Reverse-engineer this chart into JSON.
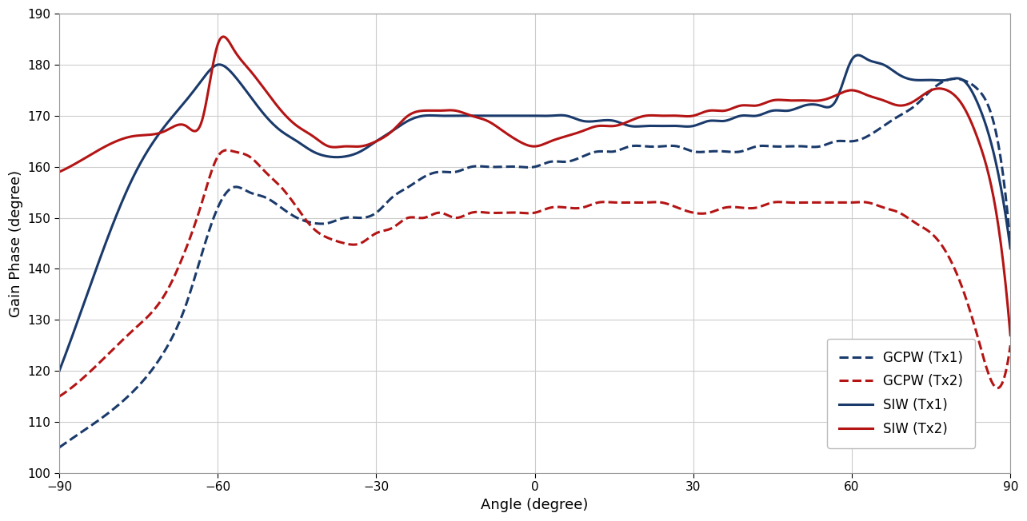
{
  "title": "",
  "xlabel": "Angle (degree)",
  "ylabel": "Gain Phase (degree)",
  "xlim": [
    -90,
    90
  ],
  "ylim": [
    100,
    190
  ],
  "xticks": [
    -90,
    -60,
    -30,
    0,
    30,
    60,
    90
  ],
  "yticks": [
    100,
    110,
    120,
    130,
    140,
    150,
    160,
    170,
    180,
    190
  ],
  "background_color": "#ffffff",
  "grid_color": "#cccccc",
  "GCPW_Tx1_x": [
    -90,
    -83,
    -76,
    -70,
    -66,
    -63,
    -60,
    -57,
    -54,
    -51,
    -48,
    -45,
    -42,
    -39,
    -36,
    -33,
    -30,
    -27,
    -24,
    -21,
    -18,
    -15,
    -12,
    -9,
    -6,
    -3,
    0,
    3,
    6,
    9,
    12,
    15,
    18,
    21,
    24,
    27,
    30,
    33,
    36,
    39,
    42,
    45,
    48,
    51,
    54,
    57,
    60,
    63,
    66,
    69,
    72,
    75,
    78,
    81,
    84,
    87,
    90
  ],
  "GCPW_Tx1_y": [
    105,
    110,
    116,
    124,
    133,
    143,
    152,
    156,
    155,
    154,
    152,
    150,
    149,
    149,
    150,
    150,
    151,
    154,
    156,
    158,
    159,
    159,
    160,
    160,
    160,
    160,
    160,
    161,
    161,
    162,
    163,
    163,
    164,
    164,
    164,
    164,
    163,
    163,
    163,
    163,
    164,
    164,
    164,
    164,
    164,
    165,
    165,
    166,
    168,
    170,
    172,
    175,
    177,
    177,
    175,
    168,
    145
  ],
  "GCPW_Tx2_x": [
    -90,
    -83,
    -76,
    -70,
    -66,
    -63,
    -60,
    -57,
    -54,
    -51,
    -48,
    -45,
    -42,
    -39,
    -36,
    -33,
    -30,
    -27,
    -24,
    -21,
    -18,
    -15,
    -12,
    -9,
    -6,
    -3,
    0,
    3,
    6,
    9,
    12,
    15,
    18,
    21,
    24,
    27,
    30,
    33,
    36,
    39,
    42,
    45,
    48,
    51,
    54,
    57,
    60,
    63,
    66,
    69,
    72,
    75,
    78,
    81,
    84,
    87,
    90
  ],
  "GCPW_Tx2_y": [
    115,
    121,
    128,
    135,
    144,
    153,
    162,
    163,
    162,
    159,
    156,
    152,
    148,
    146,
    145,
    145,
    147,
    148,
    150,
    150,
    151,
    150,
    151,
    151,
    151,
    151,
    151,
    152,
    152,
    152,
    153,
    153,
    153,
    153,
    153,
    152,
    151,
    151,
    152,
    152,
    152,
    153,
    153,
    153,
    153,
    153,
    153,
    153,
    152,
    151,
    149,
    147,
    143,
    136,
    126,
    117,
    125
  ],
  "SIW_Tx1_x": [
    -90,
    -83,
    -76,
    -70,
    -66,
    -63,
    -60,
    -57,
    -54,
    -51,
    -48,
    -45,
    -42,
    -39,
    -36,
    -33,
    -30,
    -27,
    -24,
    -21,
    -18,
    -15,
    -12,
    -9,
    -6,
    -3,
    0,
    3,
    6,
    9,
    12,
    15,
    18,
    21,
    24,
    27,
    30,
    33,
    36,
    39,
    42,
    45,
    48,
    51,
    54,
    57,
    60,
    63,
    66,
    69,
    72,
    75,
    78,
    81,
    84,
    87,
    90
  ],
  "SIW_Tx1_y": [
    120,
    140,
    158,
    168,
    173,
    177,
    180,
    178,
    174,
    170,
    167,
    165,
    163,
    162,
    162,
    163,
    165,
    167,
    169,
    170,
    170,
    170,
    170,
    170,
    170,
    170,
    170,
    170,
    170,
    169,
    169,
    169,
    168,
    168,
    168,
    168,
    168,
    169,
    169,
    170,
    170,
    171,
    171,
    172,
    172,
    173,
    181,
    181,
    180,
    178,
    177,
    177,
    177,
    177,
    172,
    162,
    144
  ],
  "SIW_Tx2_x": [
    -90,
    -83,
    -76,
    -70,
    -66,
    -63,
    -60,
    -57,
    -54,
    -51,
    -48,
    -45,
    -42,
    -39,
    -36,
    -33,
    -30,
    -27,
    -24,
    -21,
    -18,
    -15,
    -12,
    -9,
    -6,
    -3,
    0,
    3,
    6,
    9,
    12,
    15,
    18,
    21,
    24,
    27,
    30,
    33,
    36,
    39,
    42,
    45,
    48,
    51,
    54,
    57,
    60,
    63,
    66,
    69,
    72,
    75,
    78,
    81,
    84,
    87,
    90
  ],
  "SIW_Tx2_y": [
    159,
    163,
    166,
    167,
    168,
    169,
    184,
    183,
    179,
    175,
    171,
    168,
    166,
    164,
    164,
    164,
    165,
    167,
    170,
    171,
    171,
    171,
    170,
    169,
    167,
    165,
    164,
    165,
    166,
    167,
    168,
    168,
    169,
    170,
    170,
    170,
    170,
    171,
    171,
    172,
    172,
    173,
    173,
    173,
    173,
    174,
    175,
    174,
    173,
    172,
    173,
    175,
    175,
    172,
    165,
    153,
    127
  ],
  "color_blue": "#1a3a6b",
  "color_red": "#b41414",
  "linewidth": 2.2
}
